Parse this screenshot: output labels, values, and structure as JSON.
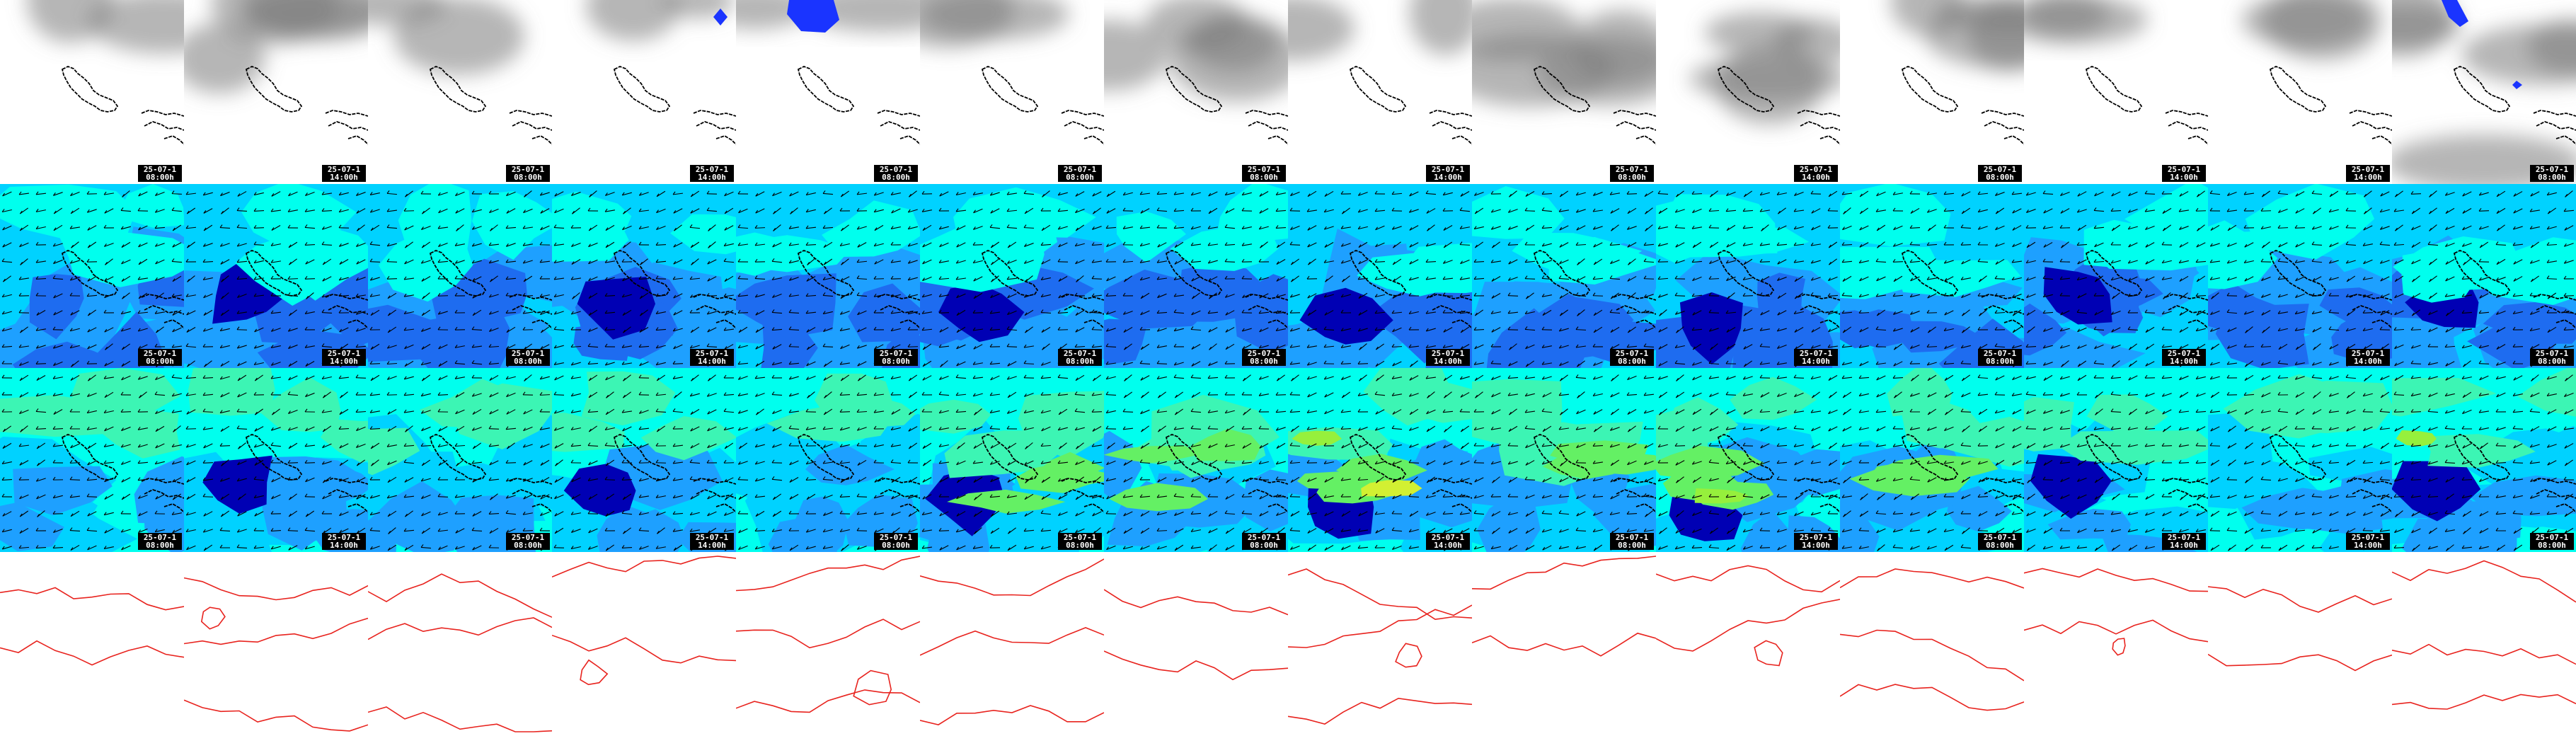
{
  "grid": {
    "rows": [
      {
        "name": "cloud",
        "columns": 14
      },
      {
        "name": "wind-low",
        "columns": 14
      },
      {
        "name": "wind-high",
        "columns": 14
      },
      {
        "name": "pressure",
        "columns": 14
      }
    ]
  },
  "stamps": [
    {
      "date": "25-07-1",
      "time": "08:00h"
    },
    {
      "date": "25-07-1",
      "time": "14:00h"
    },
    {
      "date": "25-07-1",
      "time": "08:00h"
    },
    {
      "date": "25-07-1",
      "time": "14:00h"
    },
    {
      "date": "25-07-1",
      "time": "08:00h"
    },
    {
      "date": "25-07-1",
      "time": "08:00h"
    },
    {
      "date": "25-07-1",
      "time": "08:00h"
    },
    {
      "date": "25-07-1",
      "time": "14:00h"
    },
    {
      "date": "25-07-1",
      "time": "08:00h"
    },
    {
      "date": "25-07-1",
      "time": "14:00h"
    },
    {
      "date": "25-07-1",
      "time": "08:00h"
    },
    {
      "date": "25-07-1",
      "time": "14:00h"
    },
    {
      "date": "25-07-1",
      "time": "14:00h"
    },
    {
      "date": "25-07-1",
      "time": "08:00h"
    }
  ],
  "colors": {
    "coast": "#000000",
    "isobar": "#e8231e",
    "cloud": "#7a7a7a",
    "precip": "#1a34ff",
    "wind_scale": [
      "#0000b4",
      "#0a2fd2",
      "#1e6cf0",
      "#1ea0ff",
      "#00d2ff",
      "#00ffee",
      "#3cf5b4",
      "#64f064",
      "#96f03c",
      "#d2f032"
    ]
  }
}
